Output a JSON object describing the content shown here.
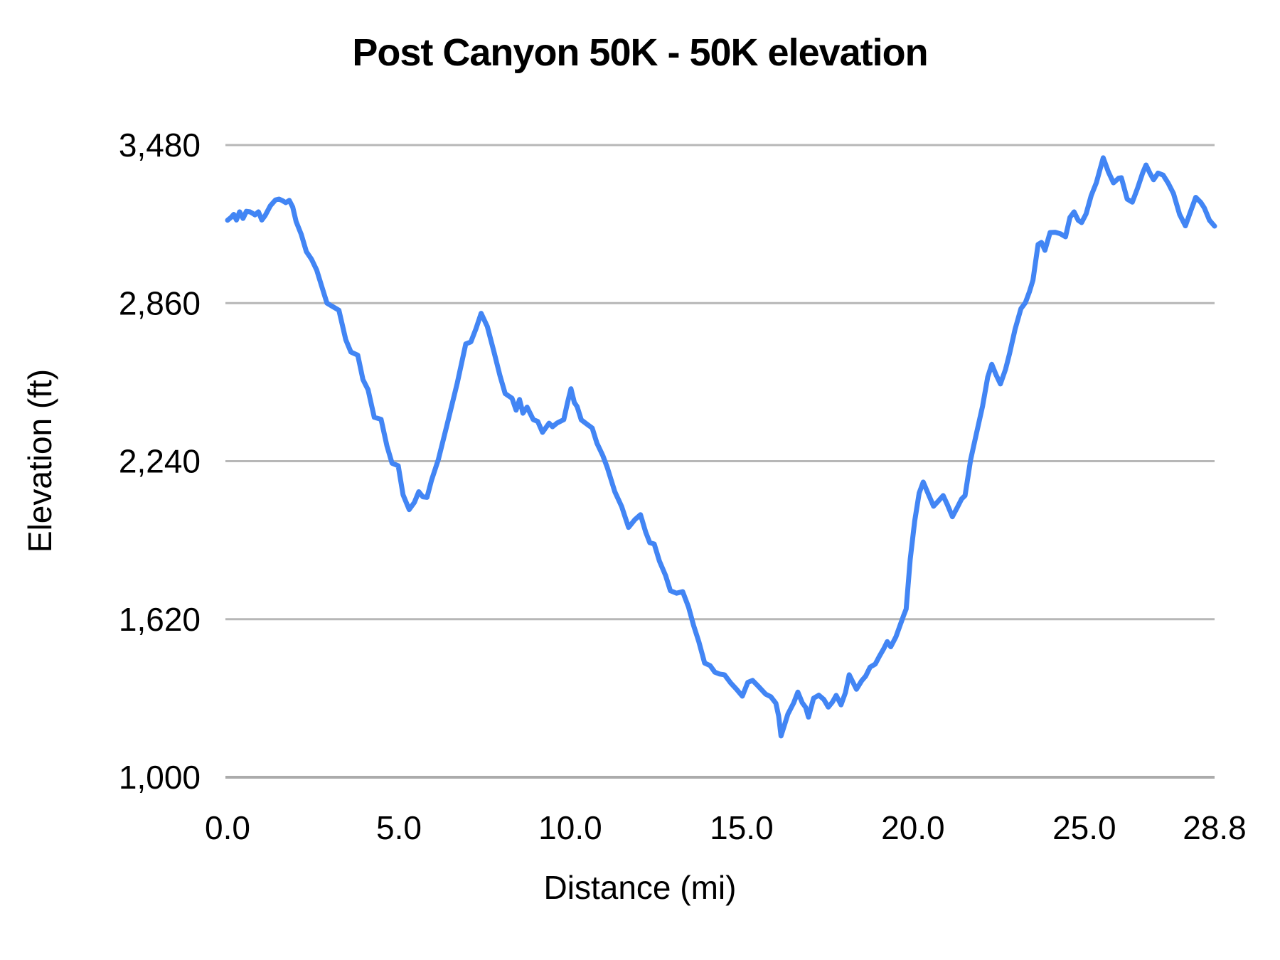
{
  "figure": {
    "background_color": "#ffffff"
  },
  "chart_data": {
    "type": "line",
    "title": "Post Canyon 50K - 50K elevation",
    "xlabel": "Distance (mi)",
    "ylabel": "Elevation (ft)",
    "xlim": [
      0,
      28.8
    ],
    "ylim": [
      1000,
      3480
    ],
    "grid": "horizontal",
    "legend": "none",
    "line_color": "#4285f4",
    "gridline_color": "#b7b7b7",
    "axis_line_color": "#ababab",
    "x_ticks": [
      {
        "label": "0.0",
        "value": 0
      },
      {
        "label": "5.0",
        "value": 5
      },
      {
        "label": "10.0",
        "value": 10
      },
      {
        "label": "15.0",
        "value": 15
      },
      {
        "label": "20.0",
        "value": 20
      },
      {
        "label": "25.0",
        "value": 25
      },
      {
        "label": "28.8",
        "value": 28.8
      }
    ],
    "y_ticks": [
      {
        "label": "3,480",
        "value": 3480
      },
      {
        "label": "2,860",
        "value": 2860
      },
      {
        "label": "2,240",
        "value": 2240
      },
      {
        "label": "1,620",
        "value": 1620
      },
      {
        "label": "1,000",
        "value": 1000
      }
    ],
    "series": [
      {
        "name": "50K elevation",
        "units": {
          "x": "mi",
          "y": "ft"
        },
        "points": [
          [
            0.0,
            3185
          ],
          [
            0.1,
            3196
          ],
          [
            0.18,
            3208
          ],
          [
            0.26,
            3186
          ],
          [
            0.35,
            3218
          ],
          [
            0.45,
            3192
          ],
          [
            0.55,
            3220
          ],
          [
            0.65,
            3218
          ],
          [
            0.72,
            3213
          ],
          [
            0.8,
            3206
          ],
          [
            0.9,
            3218
          ],
          [
            1.0,
            3186
          ],
          [
            1.1,
            3204
          ],
          [
            1.25,
            3242
          ],
          [
            1.4,
            3265
          ],
          [
            1.5,
            3268
          ],
          [
            1.6,
            3262
          ],
          [
            1.7,
            3254
          ],
          [
            1.8,
            3263
          ],
          [
            1.9,
            3237
          ],
          [
            2.0,
            3180
          ],
          [
            2.15,
            3130
          ],
          [
            2.3,
            3062
          ],
          [
            2.45,
            3032
          ],
          [
            2.6,
            2990
          ],
          [
            2.75,
            2925
          ],
          [
            2.9,
            2860
          ],
          [
            3.05,
            2848
          ],
          [
            3.25,
            2832
          ],
          [
            3.45,
            2716
          ],
          [
            3.6,
            2668
          ],
          [
            3.8,
            2656
          ],
          [
            3.95,
            2560
          ],
          [
            4.1,
            2520
          ],
          [
            4.28,
            2412
          ],
          [
            4.48,
            2404
          ],
          [
            4.65,
            2300
          ],
          [
            4.8,
            2232
          ],
          [
            4.98,
            2222
          ],
          [
            5.12,
            2108
          ],
          [
            5.3,
            2050
          ],
          [
            5.45,
            2078
          ],
          [
            5.58,
            2120
          ],
          [
            5.7,
            2100
          ],
          [
            5.82,
            2098
          ],
          [
            5.95,
            2165
          ],
          [
            6.15,
            2246
          ],
          [
            6.4,
            2380
          ],
          [
            6.7,
            2545
          ],
          [
            6.95,
            2700
          ],
          [
            7.1,
            2708
          ],
          [
            7.25,
            2760
          ],
          [
            7.4,
            2820
          ],
          [
            7.58,
            2768
          ],
          [
            7.78,
            2665
          ],
          [
            7.95,
            2575
          ],
          [
            8.1,
            2505
          ],
          [
            8.3,
            2487
          ],
          [
            8.42,
            2440
          ],
          [
            8.52,
            2482
          ],
          [
            8.62,
            2428
          ],
          [
            8.74,
            2452
          ],
          [
            8.92,
            2403
          ],
          [
            9.05,
            2396
          ],
          [
            9.19,
            2353
          ],
          [
            9.38,
            2389
          ],
          [
            9.48,
            2375
          ],
          [
            9.62,
            2390
          ],
          [
            9.81,
            2403
          ],
          [
            9.92,
            2470
          ],
          [
            10.02,
            2524
          ],
          [
            10.12,
            2470
          ],
          [
            10.2,
            2454
          ],
          [
            10.32,
            2402
          ],
          [
            10.5,
            2384
          ],
          [
            10.64,
            2370
          ],
          [
            10.78,
            2310
          ],
          [
            10.95,
            2262
          ],
          [
            11.08,
            2215
          ],
          [
            11.3,
            2120
          ],
          [
            11.5,
            2062
          ],
          [
            11.7,
            1980
          ],
          [
            11.88,
            2010
          ],
          [
            12.05,
            2030
          ],
          [
            12.2,
            1962
          ],
          [
            12.32,
            1920
          ],
          [
            12.45,
            1915
          ],
          [
            12.6,
            1848
          ],
          [
            12.78,
            1792
          ],
          [
            12.92,
            1732
          ],
          [
            13.1,
            1722
          ],
          [
            13.28,
            1728
          ],
          [
            13.45,
            1668
          ],
          [
            13.6,
            1595
          ],
          [
            13.75,
            1532
          ],
          [
            13.92,
            1448
          ],
          [
            14.08,
            1438
          ],
          [
            14.22,
            1412
          ],
          [
            14.35,
            1405
          ],
          [
            14.5,
            1402
          ],
          [
            14.68,
            1370
          ],
          [
            14.85,
            1345
          ],
          [
            15.02,
            1318
          ],
          [
            15.18,
            1372
          ],
          [
            15.32,
            1380
          ],
          [
            15.5,
            1355
          ],
          [
            15.7,
            1326
          ],
          [
            15.85,
            1316
          ],
          [
            16.0,
            1290
          ],
          [
            16.08,
            1240
          ],
          [
            16.15,
            1162
          ],
          [
            16.25,
            1205
          ],
          [
            16.35,
            1248
          ],
          [
            16.52,
            1292
          ],
          [
            16.64,
            1334
          ],
          [
            16.77,
            1292
          ],
          [
            16.87,
            1274
          ],
          [
            16.95,
            1236
          ],
          [
            17.1,
            1310
          ],
          [
            17.25,
            1322
          ],
          [
            17.4,
            1305
          ],
          [
            17.53,
            1275
          ],
          [
            17.65,
            1295
          ],
          [
            17.76,
            1321
          ],
          [
            17.9,
            1284
          ],
          [
            18.03,
            1332
          ],
          [
            18.14,
            1402
          ],
          [
            18.25,
            1372
          ],
          [
            18.35,
            1345
          ],
          [
            18.5,
            1378
          ],
          [
            18.62,
            1397
          ],
          [
            18.75,
            1432
          ],
          [
            18.9,
            1444
          ],
          [
            19.02,
            1475
          ],
          [
            19.15,
            1505
          ],
          [
            19.25,
            1532
          ],
          [
            19.35,
            1512
          ],
          [
            19.5,
            1550
          ],
          [
            19.62,
            1595
          ],
          [
            19.72,
            1632
          ],
          [
            19.8,
            1660
          ],
          [
            19.92,
            1855
          ],
          [
            20.05,
            2005
          ],
          [
            20.18,
            2115
          ],
          [
            20.3,
            2158
          ],
          [
            20.45,
            2110
          ],
          [
            20.6,
            2063
          ],
          [
            20.75,
            2085
          ],
          [
            20.88,
            2105
          ],
          [
            21.0,
            2070
          ],
          [
            21.15,
            2022
          ],
          [
            21.3,
            2060
          ],
          [
            21.42,
            2092
          ],
          [
            21.52,
            2105
          ],
          [
            21.68,
            2245
          ],
          [
            21.85,
            2347
          ],
          [
            22.03,
            2455
          ],
          [
            22.18,
            2570
          ],
          [
            22.3,
            2620
          ],
          [
            22.42,
            2580
          ],
          [
            22.55,
            2543
          ],
          [
            22.7,
            2600
          ],
          [
            22.82,
            2663
          ],
          [
            22.98,
            2758
          ],
          [
            23.15,
            2838
          ],
          [
            23.28,
            2862
          ],
          [
            23.4,
            2905
          ],
          [
            23.5,
            2950
          ],
          [
            23.65,
            3090
          ],
          [
            23.75,
            3098
          ],
          [
            23.85,
            3067
          ],
          [
            24.0,
            3137
          ],
          [
            24.15,
            3138
          ],
          [
            24.3,
            3132
          ],
          [
            24.45,
            3120
          ],
          [
            24.58,
            3196
          ],
          [
            24.7,
            3218
          ],
          [
            24.82,
            3185
          ],
          [
            24.92,
            3176
          ],
          [
            25.05,
            3210
          ],
          [
            25.2,
            3282
          ],
          [
            25.35,
            3332
          ],
          [
            25.55,
            3430
          ],
          [
            25.7,
            3375
          ],
          [
            25.85,
            3332
          ],
          [
            26.0,
            3350
          ],
          [
            26.08,
            3352
          ],
          [
            26.25,
            3268
          ],
          [
            26.4,
            3256
          ],
          [
            26.55,
            3310
          ],
          [
            26.7,
            3370
          ],
          [
            26.8,
            3402
          ],
          [
            26.92,
            3368
          ],
          [
            27.02,
            3344
          ],
          [
            27.15,
            3370
          ],
          [
            27.3,
            3362
          ],
          [
            27.45,
            3330
          ],
          [
            27.6,
            3290
          ],
          [
            27.78,
            3208
          ],
          [
            27.95,
            3163
          ],
          [
            28.1,
            3220
          ],
          [
            28.25,
            3275
          ],
          [
            28.4,
            3255
          ],
          [
            28.5,
            3234
          ],
          [
            28.65,
            3185
          ],
          [
            28.8,
            3162
          ]
        ]
      }
    ]
  }
}
